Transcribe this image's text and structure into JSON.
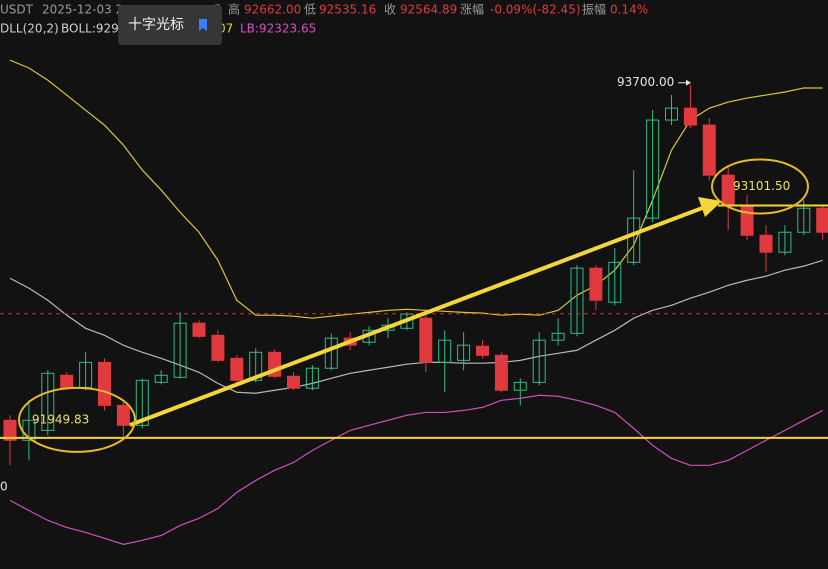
{
  "chart_data": {
    "type": "candlestick",
    "symbol": "USDT",
    "date": "2025-12-03 2",
    "fragment": "5",
    "stats": [
      {
        "label": "高",
        "value": 92662,
        "text": "92662.00"
      },
      {
        "label": "低",
        "value": 92535.16,
        "text": "92535.16"
      },
      {
        "label": "收",
        "value": 92564.89,
        "text": "92564.89"
      },
      {
        "label": "涨幅",
        "text": "-0.09%(-82.45)"
      },
      {
        "label": "振幅",
        "text": "0.14%"
      }
    ],
    "indicator": "DLL(20,2)",
    "boll_texts": [
      {
        "text": "BOLL:929",
        "color": "#d0d0d0"
      },
      {
        "text": "07",
        "color": "#e6cf3c"
      },
      {
        "text": "LB:92323.65",
        "color": "#d64fc4"
      }
    ],
    "tooltip": "十字光标",
    "corner_label": "0",
    "ylim": [
      91300,
      94120
    ],
    "up_color": "#2ebd85",
    "down_color": "#e0393e",
    "candles": {
      "open": [
        92037,
        91938,
        91987,
        92260,
        92200,
        92324,
        92111,
        92012,
        92225,
        92250,
        92518,
        92458,
        92344,
        92235,
        92374,
        92255,
        92196,
        92295,
        92444,
        92424,
        92483,
        92493,
        92543,
        92324,
        92334,
        92404,
        92359,
        92186,
        92225,
        92434,
        92468,
        92791,
        92622,
        92820,
        93039,
        93525,
        93584,
        93500,
        93252,
        93103,
        92954,
        92870,
        92969,
        93088
      ],
      "high": [
        92062,
        92136,
        92285,
        92275,
        92374,
        92344,
        92136,
        92245,
        92285,
        92572,
        92533,
        92483,
        92359,
        92394,
        92389,
        92275,
        92310,
        92468,
        92473,
        92503,
        92543,
        92572,
        92572,
        92483,
        92473,
        92434,
        92374,
        92245,
        92473,
        92543,
        92806,
        92806,
        92890,
        93277,
        93574,
        93649,
        93700,
        93535,
        93302,
        93153,
        93004,
        93004,
        93128,
        93103
      ],
      "low": [
        91814,
        91838,
        91962,
        92186,
        92186,
        92086,
        91938,
        91997,
        92215,
        92245,
        92444,
        92324,
        92220,
        92225,
        92245,
        92186,
        92186,
        92285,
        92384,
        92409,
        92444,
        92483,
        92275,
        92176,
        92285,
        92344,
        92176,
        92111,
        92210,
        92409,
        92453,
        92582,
        92607,
        92806,
        93019,
        93500,
        93485,
        93227,
        92979,
        92930,
        92771,
        92855,
        92954,
        92930
      ],
      "close": [
        91938,
        92037,
        92270,
        92196,
        92324,
        92111,
        92012,
        92235,
        92260,
        92518,
        92453,
        92334,
        92235,
        92374,
        92255,
        92196,
        92295,
        92444,
        92409,
        92483,
        92508,
        92563,
        92324,
        92434,
        92409,
        92359,
        92186,
        92225,
        92434,
        92468,
        92791,
        92632,
        92820,
        93039,
        93525,
        93584,
        93500,
        93252,
        93103,
        92954,
        92870,
        92969,
        93088,
        92969
      ]
    },
    "bands": [
      {
        "color": "#d9c63a",
        "values": [
          93822,
          93783,
          93723,
          93649,
          93574,
          93500,
          93401,
          93277,
          93178,
          93068,
          92969,
          92830,
          92632,
          92558,
          92558,
          92553,
          92543,
          92553,
          92563,
          92572,
          92582,
          92587,
          92582,
          92577,
          92572,
          92568,
          92558,
          92563,
          92558,
          92582,
          92657,
          92706,
          92781,
          92905,
          93128,
          93376,
          93525,
          93584,
          93614,
          93634,
          93649,
          93664,
          93684,
          93684
        ]
      },
      {
        "color": "#b8b8b8",
        "values": [
          92741,
          92692,
          92632,
          92558,
          92493,
          92458,
          92409,
          92374,
          92344,
          92310,
          92275,
          92220,
          92176,
          92171,
          92186,
          92200,
          92220,
          92245,
          92270,
          92285,
          92300,
          92315,
          92324,
          92324,
          92320,
          92320,
          92324,
          92334,
          92354,
          92369,
          92384,
          92434,
          92483,
          92543,
          92582,
          92607,
          92642,
          92672,
          92706,
          92731,
          92751,
          92781,
          92801,
          92830
        ]
      },
      {
        "color": "#cf4fbf",
        "values": [
          91640,
          91590,
          91541,
          91506,
          91481,
          91452,
          91422,
          91442,
          91466,
          91516,
          91551,
          91600,
          91680,
          91739,
          91789,
          91828,
          91888,
          91938,
          91987,
          92012,
          92037,
          92062,
          92076,
          92076,
          92086,
          92101,
          92136,
          92146,
          92161,
          92156,
          92136,
          92111,
          92076,
          91997,
          91913,
          91848,
          91814,
          91814,
          91838,
          91888,
          91938,
          91987,
          92037,
          92086
        ]
      }
    ],
    "annotations": [
      {
        "value": 93700,
        "label": "93700.00"
      },
      91949.83,
      {
        "value": 93101.5,
        "label": "93101.50"
      }
    ]
  }
}
